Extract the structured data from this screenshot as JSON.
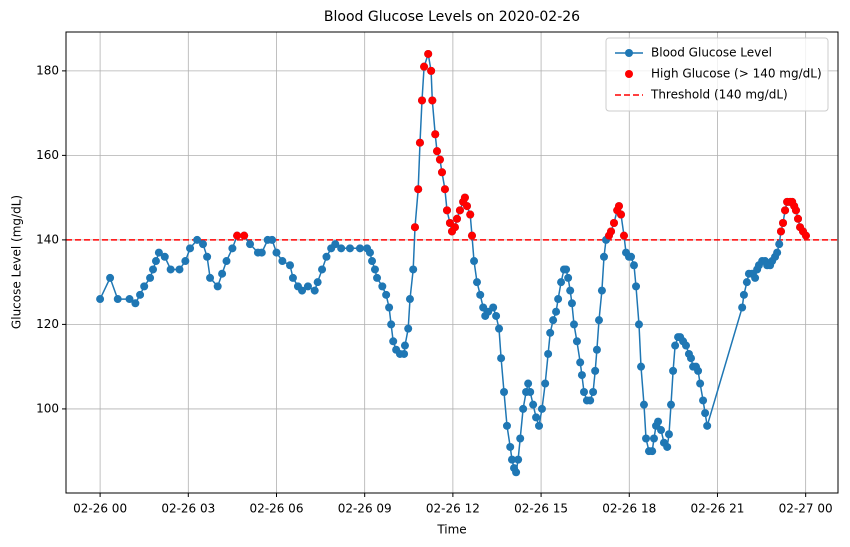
{
  "chart_data": {
    "type": "line",
    "title": "Blood Glucose Levels on 2020-02-26",
    "x_label": "Time",
    "y_label": "Glucose Level (mg/dL)",
    "xlim": [
      -1.16,
      25.1
    ],
    "ylim": [
      80.1,
      189.2
    ],
    "xticks": [
      {
        "value": 0,
        "label": "02-26 00"
      },
      {
        "value": 3,
        "label": "02-26 03"
      },
      {
        "value": 6,
        "label": "02-26 06"
      },
      {
        "value": 9,
        "label": "02-26 09"
      },
      {
        "value": 12,
        "label": "02-26 12"
      },
      {
        "value": 15,
        "label": "02-26 15"
      },
      {
        "value": 18,
        "label": "02-26 18"
      },
      {
        "value": 21,
        "label": "02-26 21"
      },
      {
        "value": 24,
        "label": "02-27 00"
      }
    ],
    "yticks": [
      100,
      120,
      140,
      160,
      180
    ],
    "grid": true,
    "legend": "upper right",
    "series": [
      {
        "name": "Blood Glucose Level",
        "color": "#1f77b4",
        "style": "line-marker",
        "x": [
          0,
          0.34,
          0.6,
          1.0,
          1.2,
          1.36,
          1.5,
          1.7,
          1.8,
          1.9,
          2.0,
          2.2,
          2.4,
          2.7,
          2.9,
          3.06,
          3.3,
          3.5,
          3.64,
          3.74,
          4.0,
          4.15,
          4.3,
          4.5,
          4.66,
          4.9,
          5.1,
          5.37,
          5.5,
          5.7,
          5.85,
          6.0,
          6.2,
          6.46,
          6.56,
          6.73,
          6.87,
          7.07,
          7.3,
          7.4,
          7.55,
          7.7,
          7.86,
          8.0,
          8.2,
          8.5,
          8.84,
          9.08,
          9.18,
          9.25,
          9.35,
          9.42,
          9.6,
          9.73,
          9.83,
          9.9,
          9.97,
          10.07,
          10.2,
          10.34,
          10.37,
          10.48,
          10.54,
          10.65,
          10.71,
          10.82,
          10.88,
          10.95,
          11.02,
          11.16,
          11.26,
          11.3,
          11.4,
          11.46,
          11.56,
          11.63,
          11.73,
          11.8,
          11.9,
          11.97,
          12.07,
          12.14,
          12.24,
          12.35,
          12.41,
          12.48,
          12.59,
          12.65,
          12.72,
          12.82,
          12.93,
          13.03,
          13.1,
          13.2,
          13.37,
          13.47,
          13.57,
          13.64,
          13.74,
          13.84,
          13.95,
          14.01,
          14.08,
          14.15,
          14.22,
          14.29,
          14.39,
          14.49,
          14.56,
          14.63,
          14.73,
          14.83,
          14.93,
          15.03,
          15.14,
          15.24,
          15.31,
          15.41,
          15.51,
          15.58,
          15.68,
          15.78,
          15.85,
          15.92,
          15.99,
          16.05,
          16.12,
          16.22,
          16.33,
          16.39,
          16.46,
          16.56,
          16.67,
          16.77,
          16.84,
          16.9,
          16.97,
          17.07,
          17.14,
          17.21,
          17.31,
          17.38,
          17.48,
          17.59,
          17.65,
          17.72,
          17.82,
          17.89,
          17.99,
          18.06,
          18.16,
          18.23,
          18.33,
          18.4,
          18.5,
          18.57,
          18.67,
          18.78,
          18.84,
          18.91,
          18.98,
          19.08,
          19.18,
          19.29,
          19.35,
          19.42,
          19.49,
          19.56,
          19.66,
          19.73,
          19.83,
          19.93,
          20.03,
          20.1,
          20.17,
          20.27,
          20.34,
          20.41,
          20.51,
          20.58,
          20.65,
          21.84,
          21.9,
          22.0,
          22.07,
          22.18,
          22.28,
          22.35,
          22.41,
          22.52,
          22.62,
          22.69,
          22.79,
          22.86,
          22.96,
          23.03,
          23.1,
          23.16,
          23.23,
          23.3,
          23.37,
          23.47,
          23.54,
          23.61,
          23.67,
          23.74,
          23.81,
          23.91,
          24.01
        ],
        "values": [
          126,
          131,
          126,
          126,
          125,
          127,
          129,
          131,
          133,
          135,
          137,
          136,
          133,
          133,
          135,
          138,
          140,
          139,
          136,
          131,
          129,
          132,
          135,
          138,
          141,
          141,
          139,
          137,
          137,
          140,
          140,
          137,
          135,
          134,
          131,
          129,
          128,
          129,
          128,
          130,
          133,
          136,
          138,
          139,
          138,
          138,
          138,
          138,
          137,
          135,
          133,
          131,
          129,
          127,
          124,
          120,
          116,
          114,
          113,
          113,
          115,
          119,
          126,
          133,
          143,
          152,
          163,
          173,
          181,
          184,
          180,
          173,
          165,
          161,
          159,
          156,
          152,
          147,
          144,
          142,
          143,
          145,
          147,
          149,
          150,
          148,
          146,
          141,
          135,
          130,
          127,
          124,
          122,
          123,
          124,
          122,
          119,
          112,
          104,
          96,
          91,
          88,
          86,
          85,
          88,
          93,
          100,
          104,
          106,
          104,
          101,
          98,
          96,
          100,
          106,
          113,
          118,
          121,
          123,
          126,
          130,
          133,
          133,
          131,
          128,
          125,
          120,
          116,
          111,
          108,
          104,
          102,
          102,
          104,
          109,
          114,
          121,
          128,
          136,
          140,
          141,
          142,
          144,
          147,
          148,
          146,
          141,
          137,
          136,
          136,
          134,
          129,
          120,
          110,
          101,
          93,
          90,
          90,
          93,
          96,
          97,
          95,
          92,
          91,
          94,
          101,
          109,
          115,
          117,
          117,
          116,
          115,
          113,
          112,
          110,
          110,
          109,
          106,
          102,
          99,
          96,
          124,
          127,
          130,
          132,
          132,
          131,
          133,
          134,
          135,
          135,
          134,
          134,
          135,
          136,
          137,
          139,
          142,
          144,
          147,
          149,
          149,
          149,
          148,
          147,
          145,
          143,
          142,
          141
        ]
      },
      {
        "name": "High Glucose (> 140 mg/dL)",
        "color": "#ff0000",
        "style": "marker",
        "x": [
          4.66,
          4.9,
          10.71,
          10.82,
          10.88,
          10.95,
          11.02,
          11.16,
          11.26,
          11.3,
          11.4,
          11.46,
          11.56,
          11.63,
          11.73,
          11.8,
          11.9,
          11.97,
          12.07,
          12.14,
          12.24,
          12.35,
          12.41,
          12.48,
          12.59,
          12.65,
          17.31,
          17.38,
          17.48,
          17.59,
          17.65,
          17.72,
          17.82,
          23.16,
          23.23,
          23.3,
          23.37,
          23.47,
          23.54,
          23.61,
          23.67,
          23.74,
          23.81,
          23.91,
          24.01
        ],
        "values": [
          141,
          141,
          143,
          152,
          163,
          173,
          181,
          184,
          180,
          173,
          165,
          161,
          159,
          156,
          152,
          147,
          144,
          142,
          143,
          145,
          147,
          149,
          150,
          148,
          146,
          141,
          141,
          142,
          144,
          147,
          148,
          146,
          141,
          142,
          144,
          147,
          149,
          149,
          149,
          148,
          147,
          145,
          143,
          142,
          141
        ]
      }
    ],
    "hlines": [
      {
        "name": "Threshold (140 mg/dL)",
        "value": 140,
        "color": "#ff0000"
      }
    ]
  }
}
